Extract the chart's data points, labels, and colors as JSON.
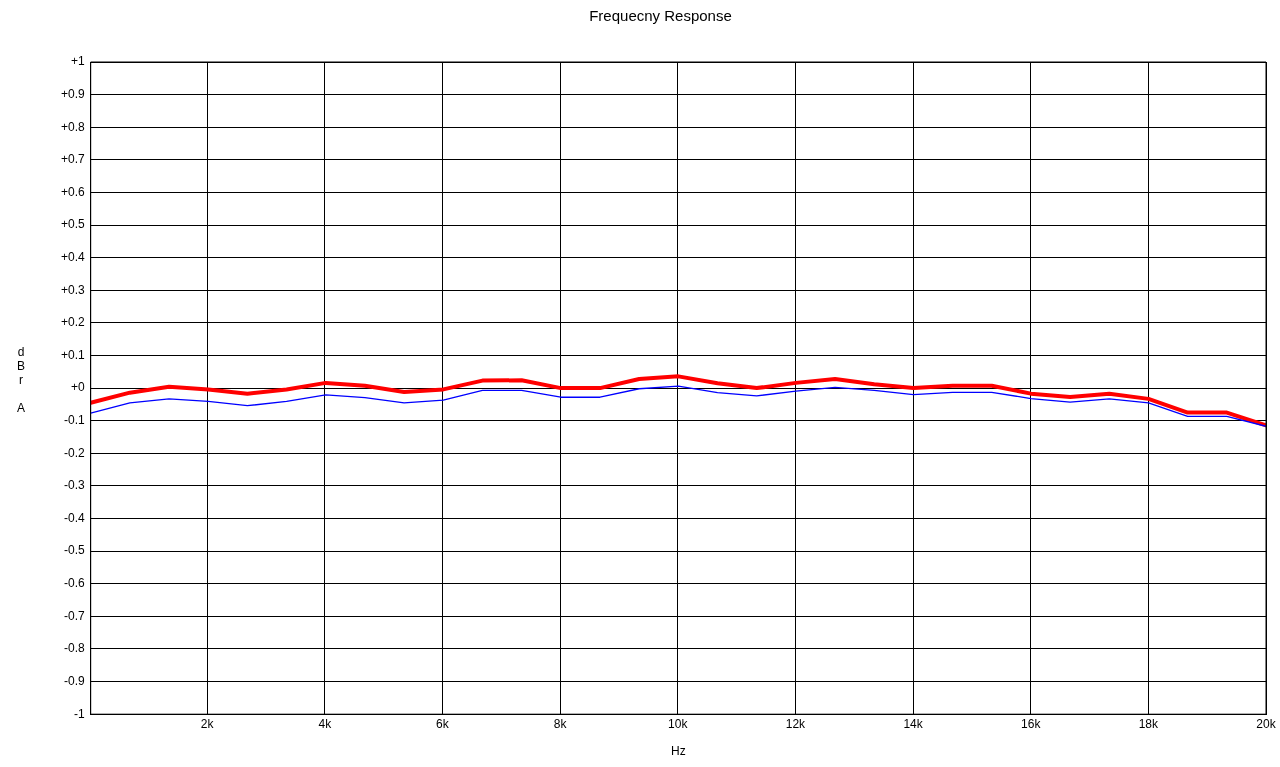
{
  "chart_data": {
    "type": "line",
    "title": "Frequecny Response",
    "xlabel": "Hz",
    "ylabel": "dBr A",
    "x": [
      20,
      686,
      1352,
      2018,
      2684,
      3350,
      4016,
      4682,
      5348,
      6014,
      6680,
      7346,
      8012,
      8678,
      9344,
      10010,
      10676,
      11342,
      12008,
      12674,
      13340,
      14006,
      14672,
      15338,
      16004,
      16670,
      17336,
      18002,
      18668,
      19334,
      20000
    ],
    "series": [
      {
        "color": "#ff0000",
        "values": [
          -0.045,
          -0.014,
          0.004,
          -0.004,
          -0.017,
          -0.004,
          0.016,
          0.007,
          -0.012,
          -0.004,
          0.023,
          0.024,
          0,
          0,
          0.028,
          0.036,
          0.015,
          0,
          0.016,
          0.028,
          0.012,
          0,
          0.007,
          0.007,
          -0.017,
          -0.027,
          -0.017,
          -0.033,
          -0.075,
          -0.075,
          -0.114
        ]
      },
      {
        "color": "#0000ff",
        "values": [
          -0.077,
          -0.045,
          -0.033,
          -0.041,
          -0.054,
          -0.041,
          -0.021,
          -0.029,
          -0.045,
          -0.037,
          -0.007,
          -0.007,
          -0.028,
          -0.028,
          -0.002,
          0.006,
          -0.014,
          -0.024,
          -0.009,
          0.002,
          -0.007,
          -0.02,
          -0.013,
          -0.013,
          -0.032,
          -0.043,
          -0.033,
          -0.045,
          -0.087,
          -0.087,
          -0.117
        ]
      }
    ],
    "xlim": [
      20,
      20000
    ],
    "xticks": [
      {
        "value": 2000,
        "label": "2k"
      },
      {
        "value": 4000,
        "label": "4k"
      },
      {
        "value": 6000,
        "label": "6k"
      },
      {
        "value": 8000,
        "label": "8k"
      },
      {
        "value": 10000,
        "label": "10k"
      },
      {
        "value": 12000,
        "label": "12k"
      },
      {
        "value": 14000,
        "label": "14k"
      },
      {
        "value": 16000,
        "label": "16k"
      },
      {
        "value": 18000,
        "label": "18k"
      },
      {
        "value": 20000,
        "label": "20k"
      }
    ],
    "ylim": [
      -1,
      1
    ],
    "yticks": [
      {
        "value": 1,
        "label": "+1"
      },
      {
        "value": 0.9,
        "label": "+0.9"
      },
      {
        "value": 0.8,
        "label": "+0.8"
      },
      {
        "value": 0.7,
        "label": "+0.7"
      },
      {
        "value": 0.6,
        "label": "+0.6"
      },
      {
        "value": 0.5,
        "label": "+0.5"
      },
      {
        "value": 0.4,
        "label": "+0.4"
      },
      {
        "value": 0.3,
        "label": "+0.3"
      },
      {
        "value": 0.2,
        "label": "+0.2"
      },
      {
        "value": 0.1,
        "label": "+0.1"
      },
      {
        "value": 0,
        "label": "+0"
      },
      {
        "value": -0.1,
        "label": "-0.1"
      },
      {
        "value": -0.2,
        "label": "-0.2"
      },
      {
        "value": -0.3,
        "label": "-0.3"
      },
      {
        "value": -0.4,
        "label": "-0.4"
      },
      {
        "value": -0.5,
        "label": "-0.5"
      },
      {
        "value": -0.6,
        "label": "-0.6"
      },
      {
        "value": -0.7,
        "label": "-0.7"
      },
      {
        "value": -0.8,
        "label": "-0.8"
      },
      {
        "value": -0.9,
        "label": "-0.9"
      },
      {
        "value": -1,
        "label": "-1"
      }
    ],
    "grid": true,
    "legend": false,
    "marker": "none",
    "line_style": "solid"
  }
}
